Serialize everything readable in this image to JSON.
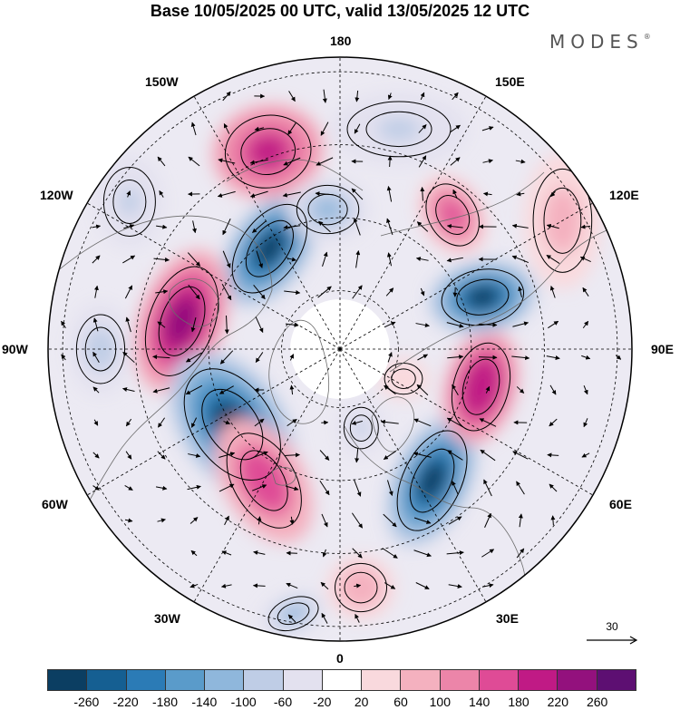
{
  "title": "Base 10/05/2025 00 UTC, valid 13/05/2025 12 UTC",
  "brand": "MODES",
  "brand_mark": "®",
  "longitude_labels": {
    "lon_180": "180",
    "lon_150e": "150E",
    "lon_120e": "120E",
    "lon_90e": "90E",
    "lon_60e": "60E",
    "lon_30e": "30E",
    "lon_0": "0",
    "lon_30w": "30W",
    "lon_60w": "60W",
    "lon_90w": "90W",
    "lon_120w": "120W",
    "lon_150w": "150W"
  },
  "reference_vector": {
    "label": "30"
  },
  "colorbar": {
    "colors": [
      "#0b3e62",
      "#155f92",
      "#2b7bb6",
      "#5a9bca",
      "#8fb7dc",
      "#bfcde6",
      "#e3e1ef",
      "#ffffff",
      "#f9d9dd",
      "#f4b1bf",
      "#ec85a9",
      "#df4b96",
      "#c01a85",
      "#93117d",
      "#5d0f72"
    ],
    "tick_labels": [
      "-260",
      "-220",
      "-180",
      "-140",
      "-100",
      "-60",
      "-20",
      "20",
      "60",
      "100",
      "140",
      "180",
      "220",
      "260"
    ]
  },
  "anomalies": [
    {
      "name": "anomaly-150w",
      "polar_angle": 145,
      "radius_frac": 0.42,
      "value": -260,
      "rot": 35,
      "rx": 34,
      "ry": 58
    },
    {
      "name": "anomaly-160w",
      "polar_angle": 160,
      "radius_frac": 0.72,
      "value": 200,
      "rot": -10,
      "rx": 50,
      "ry": 42
    },
    {
      "name": "anomaly-80w",
      "polar_angle": 100,
      "radius_frac": 0.55,
      "value": 240,
      "rot": 20,
      "rx": 38,
      "ry": 66
    },
    {
      "name": "anomaly-50w",
      "polar_angle": 55,
      "radius_frac": 0.45,
      "value": -260,
      "rot": -35,
      "rx": 46,
      "ry": 72
    },
    {
      "name": "anomaly-30w",
      "polar_angle": 30,
      "radius_frac": 0.52,
      "value": 180,
      "rot": -30,
      "rx": 36,
      "ry": 60
    },
    {
      "name": "anomaly-10w",
      "polar_angle": 10,
      "radius_frac": 0.92,
      "value": -100,
      "rot": -20,
      "rx": 30,
      "ry": 18
    },
    {
      "name": "anomaly-0",
      "polar_angle": -5,
      "radius_frac": 0.82,
      "value": 100,
      "rot": 0,
      "rx": 30,
      "ry": 28
    },
    {
      "name": "anomaly-30e",
      "polar_angle": -35,
      "radius_frac": 0.55,
      "value": -260,
      "rot": 25,
      "rx": 34,
      "ry": 62
    },
    {
      "name": "anomaly-70e",
      "polar_angle": -75,
      "radius_frac": 0.5,
      "value": 220,
      "rot": 15,
      "rx": 32,
      "ry": 52
    },
    {
      "name": "anomaly-100e",
      "polar_angle": -110,
      "radius_frac": 0.52,
      "value": -260,
      "rot": -10,
      "rx": 48,
      "ry": 32
    },
    {
      "name": "anomaly-130e",
      "polar_angle": -140,
      "radius_frac": 0.6,
      "value": 160,
      "rot": -30,
      "rx": 28,
      "ry": 38
    },
    {
      "name": "anomaly-160e",
      "polar_angle": -165,
      "radius_frac": 0.78,
      "value": -60,
      "rot": 0,
      "rx": 60,
      "ry": 32
    },
    {
      "name": "anomaly-120w",
      "polar_angle": 125,
      "radius_frac": 0.88,
      "value": -60,
      "rot": 0,
      "rx": 30,
      "ry": 40
    },
    {
      "name": "anomaly-170w",
      "polar_angle": 175,
      "radius_frac": 0.48,
      "value": -100,
      "rot": 0,
      "rx": 36,
      "ry": 28
    },
    {
      "name": "anomaly-100w",
      "polar_angle": 90,
      "radius_frac": 0.82,
      "value": -80,
      "rot": 0,
      "rx": 28,
      "ry": 40
    },
    {
      "name": "anomaly-110e",
      "polar_angle": -120,
      "radius_frac": 0.88,
      "value": 80,
      "rot": 0,
      "rx": 34,
      "ry": 60
    },
    {
      "name": "anomaly-20e",
      "polar_angle": -15,
      "radius_frac": 0.28,
      "value": -60,
      "rot": 0,
      "rx": 20,
      "ry": 24
    },
    {
      "name": "anomaly-60e",
      "polar_angle": -65,
      "radius_frac": 0.24,
      "value": 60,
      "rot": 0,
      "rx": 22,
      "ry": 18
    }
  ]
}
